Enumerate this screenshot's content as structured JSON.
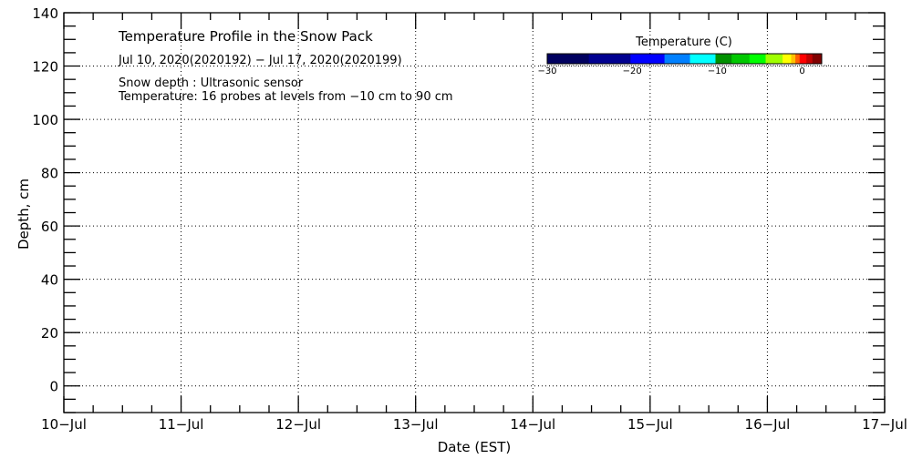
{
  "chart_data": {
    "type": "heatmap",
    "title": "Temperature Profile in the Snow Pack",
    "subtitle": "Jul 10, 2020(2020192) − Jul 17, 2020(2020199)",
    "notes": [
      "Snow depth : Ultrasonic sensor",
      "Temperature: 16 probes at levels from −10 cm to 90 cm"
    ],
    "xlabel": "Date (EST)",
    "ylabel": "Depth, cm",
    "x_ticks": [
      "10−Jul",
      "11−Jul",
      "12−Jul",
      "13−Jul",
      "14−Jul",
      "15−Jul",
      "16−Jul",
      "17−Jul"
    ],
    "y_ticks": [
      0,
      20,
      40,
      60,
      80,
      100,
      120,
      140
    ],
    "ylim": [
      -10,
      140
    ],
    "grid": true,
    "series": [],
    "colorbar": {
      "title": "Temperature (C)",
      "range": [
        -30,
        2.3
      ],
      "tick_values": [
        -30,
        -20,
        -10,
        0
      ],
      "tick_labels": [
        "−30",
        "−20",
        "−10",
        "0"
      ],
      "placement": "top-right",
      "colors": [
        "#00005f",
        "#000090",
        "#0000ff",
        "#0080ff",
        "#00ffff",
        "#009000",
        "#00c800",
        "#00ff00",
        "#a0ff00",
        "#ffff00",
        "#ffc000",
        "#ff6000",
        "#ff0000",
        "#c00000",
        "#800000"
      ],
      "bounds": [
        -30,
        -25.1,
        -20.2,
        -16.2,
        -13.2,
        -10.2,
        -8.3,
        -6.2,
        -4.3,
        -2.3,
        -1.3,
        -0.8,
        -0.3,
        0.5,
        1.2,
        2.3
      ]
    }
  }
}
